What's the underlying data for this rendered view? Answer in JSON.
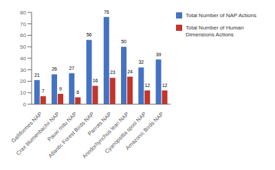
{
  "chart_data": {
    "type": "bar",
    "categories": [
      "Galliformes NAP",
      "Crax blumenbachii NAP",
      "Pauxi mitu NAP",
      "Atlantic Forest Birds NAP",
      "Parrots NAP",
      "Anodorhynchus leari NAP",
      "Cyanopsitta spixii NAP",
      "Amazonic Birds NAP"
    ],
    "series": [
      {
        "name": "Total Number of NAP Actions",
        "color": "#4472C4",
        "values": [
          21,
          26,
          27,
          56,
          76,
          50,
          32,
          39
        ]
      },
      {
        "name": "Total Number of Human\nDimensions Actions",
        "color": "#C0362C",
        "values": [
          7,
          9,
          6,
          16,
          23,
          24,
          12,
          12
        ]
      }
    ],
    "ylim": [
      0,
      80
    ],
    "yticks": [
      0,
      10,
      20,
      30,
      40,
      50,
      60,
      70,
      80
    ],
    "data_labels": true,
    "grid": false,
    "legend": "upper right"
  }
}
